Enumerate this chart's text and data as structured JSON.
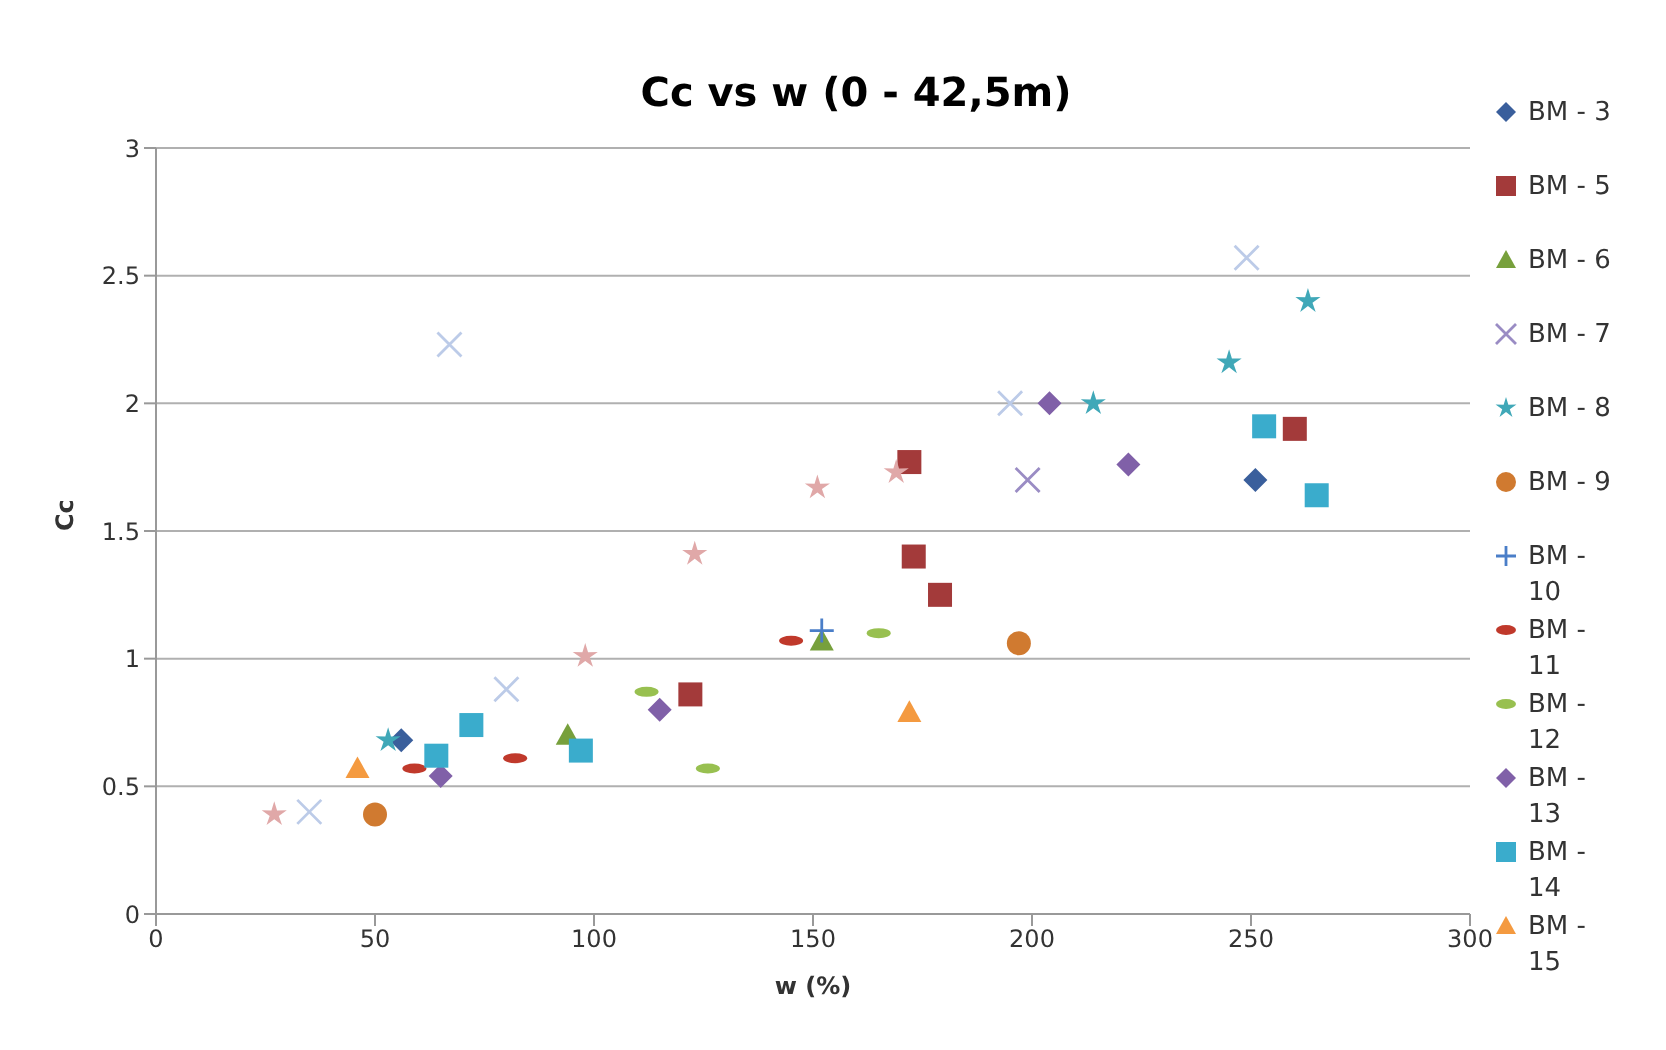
{
  "chart_data": {
    "type": "scatter",
    "title": "Cc vs w (0 - 42,5m)",
    "xlabel": "w (%)",
    "ylabel": "Cc",
    "xlim": [
      0,
      300
    ],
    "xticks": [
      0,
      50,
      100,
      150,
      200,
      250,
      300
    ],
    "ylim": [
      0,
      3
    ],
    "yticks": [
      0,
      0.5,
      1,
      1.5,
      2,
      2.5,
      3
    ],
    "grid": "y",
    "legend": "right",
    "series": [
      {
        "name": "BM - 3",
        "color": "#3a5f9c",
        "marker": "diamond",
        "x": [
          56,
          251
        ],
        "values": [
          0.68,
          1.7
        ]
      },
      {
        "name": "BM - 5",
        "color": "#a33a3a",
        "marker": "square",
        "x": [
          122,
          172,
          173,
          179,
          260
        ],
        "values": [
          0.86,
          1.77,
          1.4,
          1.25,
          1.9
        ]
      },
      {
        "name": "BM - 6",
        "color": "#77a03c",
        "marker": "triangle",
        "x": [
          94,
          152
        ],
        "values": [
          0.7,
          1.07
        ]
      },
      {
        "name": "BM - 7",
        "color": "#9a8cc4",
        "marker": "cross",
        "x": [
          199
        ],
        "values": [
          1.7
        ]
      },
      {
        "name": "BM - 8",
        "color": "#40a8b8",
        "marker": "star",
        "x": [
          53,
          214,
          245,
          263
        ],
        "values": [
          0.68,
          2.0,
          2.16,
          2.4
        ]
      },
      {
        "name": "BM - 9",
        "color": "#d07a30",
        "marker": "circle",
        "x": [
          50,
          197
        ],
        "values": [
          0.39,
          1.06
        ]
      },
      {
        "name": "BM - 10",
        "color": "#4a7ec8",
        "marker": "plus",
        "x": [
          152
        ],
        "values": [
          1.11
        ]
      },
      {
        "name": "BM - 11",
        "color": "#c0392b",
        "x": [
          59,
          82,
          145
        ],
        "values": [
          0.57,
          0.61,
          1.07
        ]
      },
      {
        "name": "BM - 12",
        "color": "#98c050",
        "x": [
          112,
          126,
          165
        ],
        "values": [
          0.87,
          0.57,
          1.1
        ]
      },
      {
        "name": "BM - 13",
        "color": "#8060a8",
        "marker": "diamond",
        "x": [
          65,
          115,
          204,
          222
        ],
        "values": [
          0.54,
          0.8,
          2.0,
          1.76
        ]
      },
      {
        "name": "BM - 14",
        "color": "#3aaccc",
        "marker": "square",
        "x": [
          64,
          72,
          97,
          253,
          265
        ],
        "values": [
          0.62,
          0.74,
          0.64,
          1.91,
          1.64
        ]
      },
      {
        "name": "BM - 15",
        "color": "#f49a40",
        "marker": "triangle",
        "x": [
          46,
          172
        ],
        "values": [
          0.57,
          0.79
        ]
      },
      {
        "color": "#bccbe8",
        "marker": "cross",
        "x": [
          67,
          35,
          80,
          195,
          249
        ],
        "values": [
          2.23,
          0.4,
          0.88,
          2.0,
          2.57
        ]
      },
      {
        "color": "#e0a8a8",
        "marker": "star",
        "x": [
          27,
          98,
          123,
          151,
          169
        ],
        "values": [
          0.39,
          1.01,
          1.41,
          1.67,
          1.73
        ]
      }
    ]
  }
}
